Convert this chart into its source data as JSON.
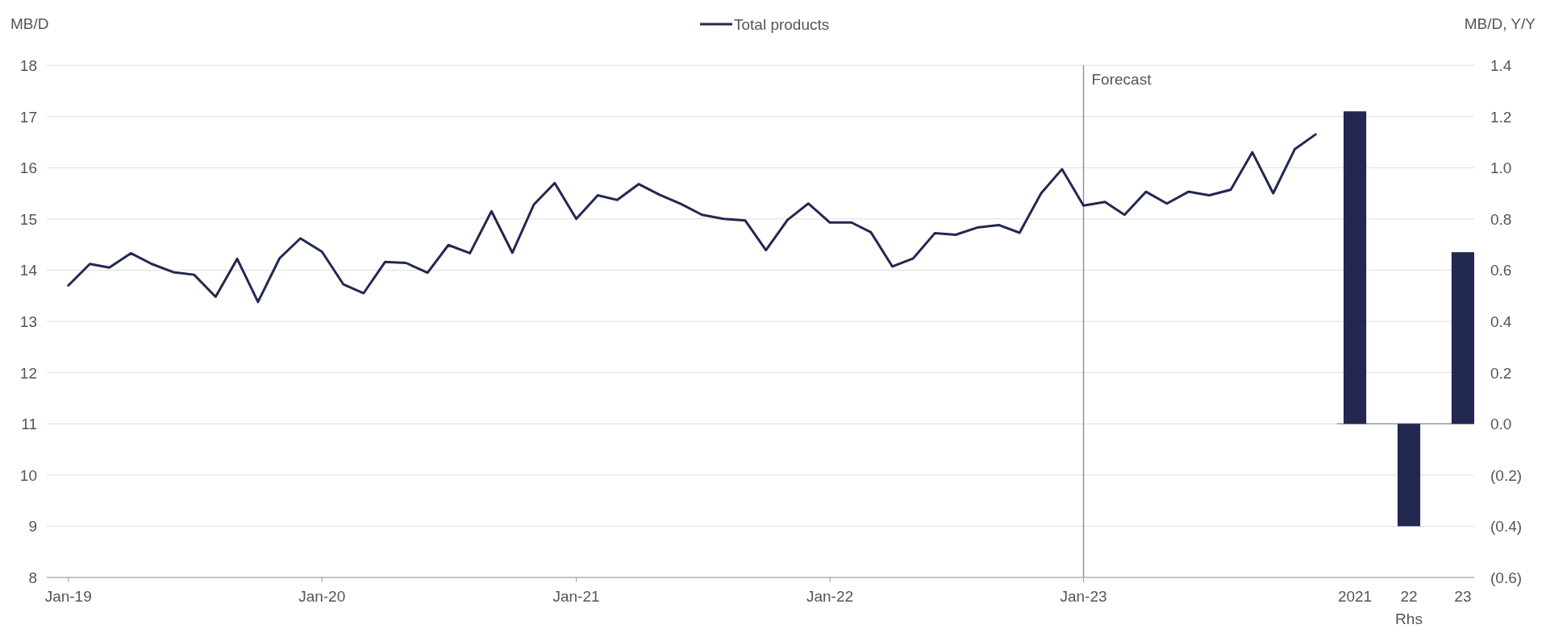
{
  "chart_data": [
    {
      "type": "line",
      "ylabel": "MB/D",
      "x": [
        "2019-01",
        "2019-02",
        "2019-03",
        "2019-04",
        "2019-05",
        "2019-06",
        "2019-07",
        "2019-08",
        "2019-09",
        "2019-10",
        "2019-11",
        "2019-12",
        "2020-01",
        "2020-02",
        "2020-03",
        "2020-04",
        "2020-05",
        "2020-06",
        "2020-07",
        "2020-08",
        "2020-09",
        "2020-10",
        "2020-11",
        "2020-12",
        "2021-01",
        "2021-02",
        "2021-03",
        "2021-04",
        "2021-05",
        "2021-06",
        "2021-07",
        "2021-08",
        "2021-09",
        "2021-10",
        "2021-11",
        "2021-12",
        "2022-01",
        "2022-02",
        "2022-03",
        "2022-04",
        "2022-05",
        "2022-06",
        "2022-07",
        "2022-08",
        "2022-09",
        "2022-10",
        "2022-11",
        "2022-12",
        "2023-01",
        "2023-02",
        "2023-03",
        "2023-04",
        "2023-05",
        "2023-06",
        "2023-07",
        "2023-08",
        "2023-09",
        "2023-10",
        "2023-11",
        "2023-12"
      ],
      "series": [
        {
          "name": "Total products",
          "color": "#222850",
          "values": [
            13.7,
            14.12,
            14.05,
            14.33,
            14.12,
            13.96,
            13.91,
            13.48,
            14.22,
            13.38,
            14.23,
            14.62,
            14.36,
            13.72,
            13.55,
            14.16,
            14.14,
            13.95,
            14.49,
            14.33,
            15.15,
            14.34,
            15.28,
            15.7,
            15.0,
            15.46,
            15.37,
            15.68,
            15.47,
            15.29,
            15.08,
            15.0,
            14.97,
            14.39,
            14.98,
            15.3,
            14.93,
            14.93,
            14.74,
            14.07,
            14.23,
            14.72,
            14.69,
            14.83,
            14.88,
            14.73,
            15.5,
            15.97,
            15.26,
            15.33,
            15.08,
            15.53,
            15.3,
            15.53,
            15.46,
            15.57,
            16.3,
            15.5,
            16.36,
            16.65
          ]
        }
      ],
      "xlim": [
        "2018-12",
        "2024-01"
      ],
      "xticks": [
        {
          "value": "2019-01",
          "label": "Jan-19"
        },
        {
          "value": "2020-01",
          "label": "Jan-20"
        },
        {
          "value": "2021-01",
          "label": "Jan-21"
        },
        {
          "value": "2022-01",
          "label": "Jan-22"
        },
        {
          "value": "2023-01",
          "label": "Jan-23"
        }
      ],
      "ylim": [
        8,
        18
      ],
      "yticks": [
        8,
        9,
        10,
        11,
        12,
        13,
        14,
        15,
        16,
        17,
        18
      ],
      "ref_lines": [
        {
          "axis": "x",
          "value": "2023-01",
          "label": "Forecast",
          "color": "#888888"
        }
      ],
      "grid": "y",
      "legend": "top",
      "line_style": "solid",
      "marker": "none"
    },
    {
      "type": "bar",
      "y2label": "MB/D, Y/Y",
      "xlabel": "Rhs",
      "categories": [
        "2021",
        "22",
        "23"
      ],
      "series": [
        {
          "color": "#222850",
          "axis": "y2",
          "values": [
            1.22,
            -0.4,
            0.67
          ]
        }
      ],
      "y2lim": [
        -0.6,
        1.4
      ],
      "y2ticks": [
        {
          "value": -0.6,
          "label": "(0.6)"
        },
        {
          "value": -0.4,
          "label": "(0.4)"
        },
        {
          "value": -0.2,
          "label": "(0.2)"
        },
        {
          "value": 0,
          "label": "0.0"
        },
        {
          "value": 0.2,
          "label": "0.2"
        },
        {
          "value": 0.4,
          "label": "0.4"
        },
        {
          "value": 0.6,
          "label": "0.6"
        },
        {
          "value": 0.8,
          "label": "0.8"
        },
        {
          "value": 1.0,
          "label": "1.0"
        },
        {
          "value": 1.2,
          "label": "1.2"
        },
        {
          "value": 1.4,
          "label": "1.4"
        }
      ],
      "grid": "y"
    }
  ]
}
